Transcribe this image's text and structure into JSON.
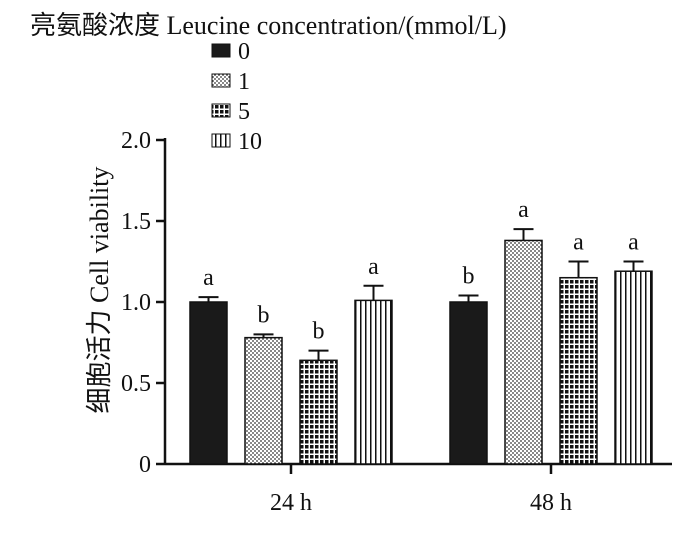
{
  "chart_data": {
    "type": "bar",
    "legend_title": "亮氨酸浓度 Leucine concentration/(mmol/L)",
    "ylabel": "细胞活力 Cell viability",
    "xlabel": "",
    "categories": [
      "24 h",
      "48 h"
    ],
    "ylim": [
      0,
      2.0
    ],
    "yticks": [
      {
        "value": 0,
        "label": "0"
      },
      {
        "value": 0.5,
        "label": "0.5"
      },
      {
        "value": 1.0,
        "label": "1.0"
      },
      {
        "value": 1.5,
        "label": "1.5"
      },
      {
        "value": 2.0,
        "label": "2.0"
      }
    ],
    "legend_placement": "top-left",
    "grid": false,
    "series": [
      {
        "name": "0",
        "pattern": "solid",
        "color": "#1a1a1a",
        "values": [
          1.0,
          1.0
        ],
        "errors": [
          0.03,
          0.04
        ],
        "labels": [
          "a",
          "b"
        ]
      },
      {
        "name": "1",
        "pattern": "dots",
        "color": "#555555",
        "values": [
          0.78,
          1.38
        ],
        "errors": [
          0.02,
          0.07
        ],
        "labels": [
          "b",
          "a"
        ]
      },
      {
        "name": "5",
        "pattern": "grid",
        "color": "#1a1a1a",
        "values": [
          0.64,
          1.15
        ],
        "errors": [
          0.06,
          0.1
        ],
        "labels": [
          "b",
          "a"
        ]
      },
      {
        "name": "10",
        "pattern": "vlines",
        "color": "#1a1a1a",
        "values": [
          1.01,
          1.19
        ],
        "errors": [
          0.09,
          0.06
        ],
        "labels": [
          "a",
          "a"
        ]
      }
    ]
  }
}
